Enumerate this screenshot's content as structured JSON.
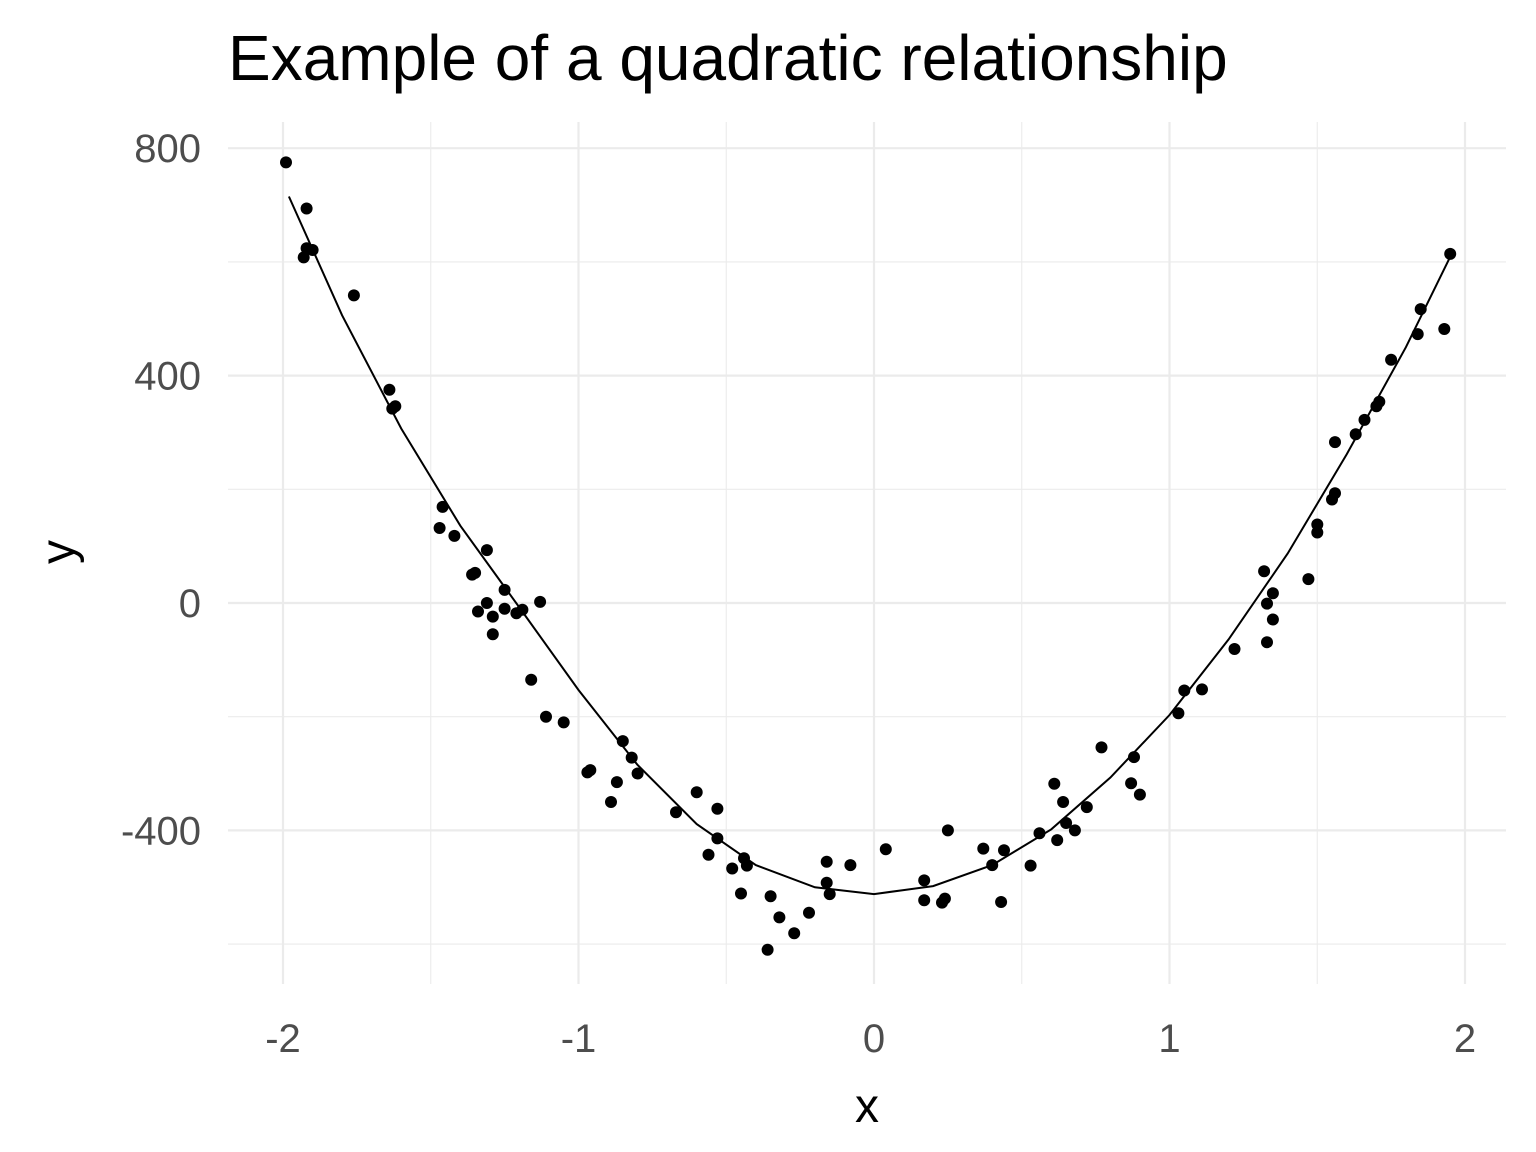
{
  "chart_data": {
    "type": "scatter",
    "title": "Example of a quadratic relationship",
    "xlabel": "x",
    "ylabel": "y",
    "xlim": [
      -2.05,
      2.15
    ],
    "ylim": [
      -660,
      845
    ],
    "x_ticks": [
      -2,
      -1,
      0,
      1,
      2
    ],
    "x_tick_labels": [
      "-2",
      "-1",
      "0",
      "1",
      "2"
    ],
    "y_ticks": [
      -400,
      0,
      400,
      800
    ],
    "y_tick_labels": [
      "-400",
      "0",
      "400",
      "800"
    ],
    "grid": true,
    "legend": "none",
    "series": [
      {
        "kind": "points",
        "points": [
          [
            -1.99,
            775
          ],
          [
            -1.93,
            608
          ],
          [
            -1.92,
            624
          ],
          [
            -1.9,
            621
          ],
          [
            -1.92,
            694
          ],
          [
            -1.76,
            541
          ],
          [
            -1.64,
            375
          ],
          [
            -1.63,
            342
          ],
          [
            -1.62,
            346
          ],
          [
            -1.47,
            132
          ],
          [
            -1.46,
            169
          ],
          [
            -1.42,
            118
          ],
          [
            -1.36,
            50
          ],
          [
            -1.35,
            53
          ],
          [
            -1.34,
            -15
          ],
          [
            -1.31,
            0
          ],
          [
            -1.31,
            93
          ],
          [
            -1.29,
            -55
          ],
          [
            -1.29,
            -24
          ],
          [
            -1.25,
            -10
          ],
          [
            -1.25,
            23
          ],
          [
            -1.21,
            -18
          ],
          [
            -1.19,
            -12
          ],
          [
            -1.13,
            2
          ],
          [
            -1.16,
            -135
          ],
          [
            -1.11,
            -200
          ],
          [
            -1.05,
            -210
          ],
          [
            -0.97,
            -298
          ],
          [
            -0.96,
            -294
          ],
          [
            -0.89,
            -350
          ],
          [
            -0.87,
            -315
          ],
          [
            -0.85,
            -243
          ],
          [
            -0.82,
            -272
          ],
          [
            -0.8,
            -300
          ],
          [
            -0.67,
            -368
          ],
          [
            -0.6,
            -333
          ],
          [
            -0.56,
            -443
          ],
          [
            -0.53,
            -362
          ],
          [
            -0.53,
            -414
          ],
          [
            -0.48,
            -467
          ],
          [
            -0.45,
            -511
          ],
          [
            -0.44,
            -449
          ],
          [
            -0.43,
            -462
          ],
          [
            -0.36,
            -610
          ],
          [
            -0.35,
            -516
          ],
          [
            -0.32,
            -553
          ],
          [
            -0.27,
            -581
          ],
          [
            -0.22,
            -545
          ],
          [
            -0.16,
            -455
          ],
          [
            -0.16,
            -492
          ],
          [
            -0.15,
            -512
          ],
          [
            -0.08,
            -461
          ],
          [
            0.04,
            -433
          ],
          [
            0.17,
            -488
          ],
          [
            0.17,
            -523
          ],
          [
            0.23,
            -527
          ],
          [
            0.24,
            -520
          ],
          [
            0.25,
            -400
          ],
          [
            0.37,
            -432
          ],
          [
            0.4,
            -461
          ],
          [
            0.43,
            -526
          ],
          [
            0.44,
            -435
          ],
          [
            0.53,
            -462
          ],
          [
            0.56,
            -405
          ],
          [
            0.61,
            -318
          ],
          [
            0.62,
            -417
          ],
          [
            0.64,
            -350
          ],
          [
            0.65,
            -387
          ],
          [
            0.68,
            -400
          ],
          [
            0.72,
            -359
          ],
          [
            0.77,
            -254
          ],
          [
            0.87,
            -317
          ],
          [
            0.88,
            -271
          ],
          [
            0.9,
            -337
          ],
          [
            1.03,
            -194
          ],
          [
            1.05,
            -154
          ],
          [
            1.11,
            -152
          ],
          [
            1.22,
            -81
          ],
          [
            1.32,
            56
          ],
          [
            1.33,
            -69
          ],
          [
            1.33,
            -1
          ],
          [
            1.35,
            17
          ],
          [
            1.35,
            -29
          ],
          [
            1.47,
            42
          ],
          [
            1.5,
            124
          ],
          [
            1.5,
            138
          ],
          [
            1.55,
            182
          ],
          [
            1.56,
            283
          ],
          [
            1.56,
            193
          ],
          [
            1.63,
            297
          ],
          [
            1.66,
            322
          ],
          [
            1.7,
            346
          ],
          [
            1.71,
            354
          ],
          [
            1.75,
            428
          ],
          [
            1.84,
            473
          ],
          [
            1.85,
            517
          ],
          [
            1.93,
            482
          ],
          [
            1.95,
            614
          ]
        ]
      },
      {
        "kind": "line",
        "points": [
          [
            -1.98,
            715
          ],
          [
            -1.8,
            506
          ],
          [
            -1.6,
            307
          ],
          [
            -1.4,
            136
          ],
          [
            -1.2,
            -8
          ],
          [
            -1.0,
            -153
          ],
          [
            -0.8,
            -285
          ],
          [
            -0.6,
            -389
          ],
          [
            -0.4,
            -461
          ],
          [
            -0.2,
            -500
          ],
          [
            0.0,
            -512
          ],
          [
            0.2,
            -498
          ],
          [
            0.4,
            -461
          ],
          [
            0.6,
            -398
          ],
          [
            0.8,
            -307
          ],
          [
            1.0,
            -197
          ],
          [
            1.2,
            -64
          ],
          [
            1.4,
            87
          ],
          [
            1.6,
            262
          ],
          [
            1.8,
            450
          ],
          [
            1.95,
            609
          ]
        ]
      }
    ]
  }
}
